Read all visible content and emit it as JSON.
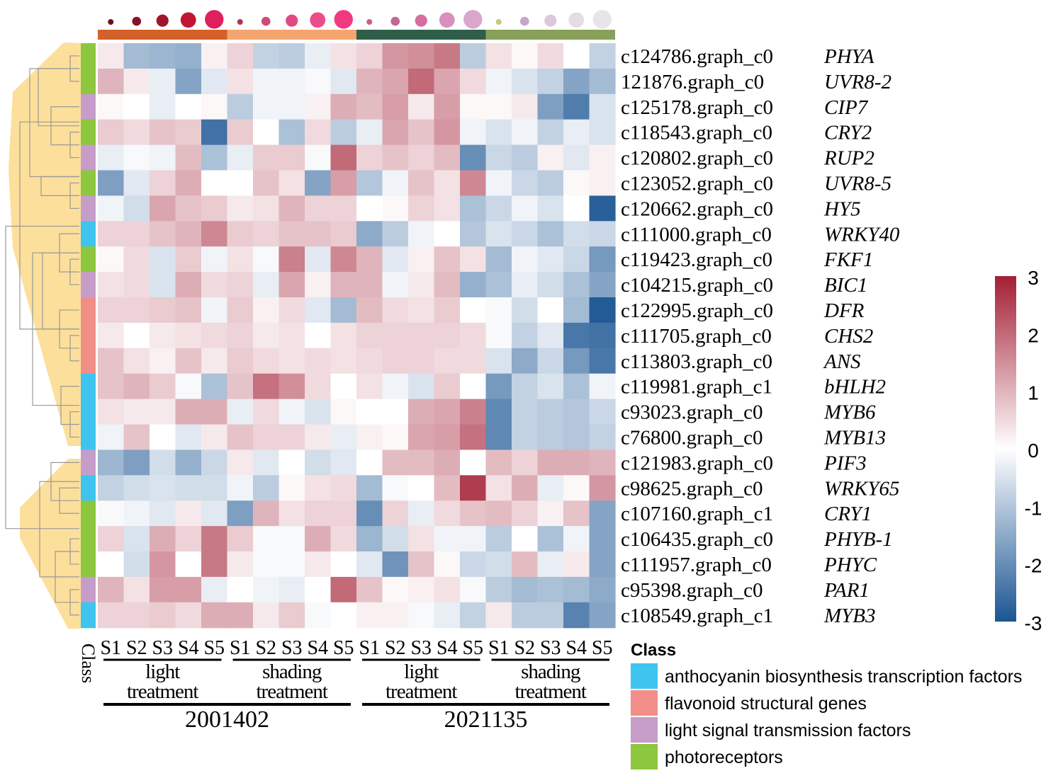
{
  "chart_data": {
    "type": "heatmap",
    "title": "",
    "columns": [
      "S1",
      "S2",
      "S3",
      "S4",
      "S5",
      "S1",
      "S2",
      "S3",
      "S4",
      "S5",
      "S1",
      "S2",
      "S3",
      "S4",
      "S5",
      "S1",
      "S2",
      "S3",
      "S4",
      "S5"
    ],
    "column_groups": [
      {
        "label": "light treatment",
        "cultivar": "2001402",
        "color": "#d4612a"
      },
      {
        "label": "shading treatment",
        "cultivar": "2001402",
        "color": "#f4a46e"
      },
      {
        "label": "light treatment",
        "cultivar": "2021135",
        "color": "#2f5e49"
      },
      {
        "label": "shading treatment",
        "cultivar": "2021135",
        "color": "#88a05a"
      }
    ],
    "cultivars": [
      "2001402",
      "2021135"
    ],
    "rows": [
      {
        "id": "c124786.graph_c0",
        "gene": "PHYA",
        "class": "photoreceptors"
      },
      {
        "id": "121876.graph_c0",
        "gene": "UVR8-2",
        "class": "photoreceptors"
      },
      {
        "id": "c125178.graph_c0",
        "gene": "CIP7",
        "class": "light signal transmission  factors"
      },
      {
        "id": "c118543.graph_c0",
        "gene": "CRY2",
        "class": "photoreceptors"
      },
      {
        "id": "c120802.graph_c0",
        "gene": "RUP2",
        "class": "light signal transmission  factors"
      },
      {
        "id": "c123052.graph_c0",
        "gene": "UVR8-5",
        "class": "photoreceptors"
      },
      {
        "id": "c120662.graph_c0",
        "gene": "HY5",
        "class": "light signal transmission  factors"
      },
      {
        "id": "c111000.graph_c0",
        "gene": "WRKY40",
        "class": "anthocyanin biosynthesis transcription factors"
      },
      {
        "id": "c119423.graph_c0",
        "gene": "FKF1",
        "class": "photoreceptors"
      },
      {
        "id": "c104215.graph_c0",
        "gene": "BIC1",
        "class": "light signal transmission  factors"
      },
      {
        "id": "c122995.graph_c0",
        "gene": "DFR",
        "class": "flavonoid structural genes"
      },
      {
        "id": "c111705.graph_c0",
        "gene": "CHS2",
        "class": "flavonoid structural genes"
      },
      {
        "id": "c113803.graph_c0",
        "gene": "ANS",
        "class": "flavonoid structural genes"
      },
      {
        "id": "c119981.graph_c1",
        "gene": "bHLH2",
        "class": "anthocyanin biosynthesis transcription factors"
      },
      {
        "id": "c93023.graph_c0",
        "gene": "MYB6",
        "class": "anthocyanin biosynthesis transcription factors"
      },
      {
        "id": "c76800.graph_c0",
        "gene": "MYB13",
        "class": "anthocyanin biosynthesis transcription factors"
      },
      {
        "id": "c121983.graph_c0",
        "gene": "PIF3",
        "class": "light signal transmission  factors"
      },
      {
        "id": "c98625.graph_c0",
        "gene": "WRKY65",
        "class": "anthocyanin biosynthesis transcription factors"
      },
      {
        "id": "c107160.graph_c1",
        "gene": "CRY1",
        "class": "photoreceptors"
      },
      {
        "id": "c106435.graph_c0",
        "gene": "PHYB-1",
        "class": "photoreceptors"
      },
      {
        "id": "c111957.graph_c0",
        "gene": "PHYC",
        "class": "photoreceptors"
      },
      {
        "id": "c95398.graph_c0",
        "gene": "PAR1",
        "class": "light signal transmission  factors"
      },
      {
        "id": "c108549.graph_c1",
        "gene": "MYB3",
        "class": "anthocyanin biosynthesis transcription factors"
      }
    ],
    "values": [
      [
        0.3,
        -1.2,
        -1.3,
        -1.4,
        0.2,
        0.6,
        -0.8,
        -0.9,
        -0.3,
        0.4,
        0.6,
        1.4,
        1.5,
        1.8,
        -0.9,
        0.4,
        0.1,
        0.5,
        0.0,
        -0.8
      ],
      [
        1.0,
        0.3,
        -0.3,
        -1.6,
        -0.4,
        0.4,
        -0.2,
        -0.2,
        -0.1,
        -0.4,
        1.0,
        1.2,
        2.0,
        1.2,
        0.5,
        -0.2,
        -0.5,
        -0.8,
        -1.6,
        -1.2
      ],
      [
        0.1,
        0.0,
        -0.3,
        0.0,
        0.1,
        -0.9,
        -0.2,
        -0.2,
        0.2,
        1.1,
        0.9,
        1.3,
        0.3,
        1.3,
        0.1,
        0.1,
        0.3,
        -1.7,
        -2.3,
        -0.5
      ],
      [
        0.7,
        0.5,
        0.8,
        0.7,
        -2.5,
        0.7,
        0.0,
        -1.1,
        0.5,
        -0.9,
        -0.3,
        1.2,
        0.8,
        1.4,
        -0.2,
        -0.5,
        -0.2,
        -0.8,
        -0.3,
        -0.5
      ],
      [
        -0.3,
        -0.1,
        -0.2,
        0.9,
        -1.1,
        -0.3,
        0.7,
        0.7,
        -0.1,
        2.0,
        0.6,
        0.8,
        0.6,
        0.9,
        -2.0,
        -0.7,
        -0.9,
        0.2,
        -0.4,
        0.2
      ],
      [
        -1.7,
        -0.4,
        0.6,
        1.1,
        0.0,
        0.0,
        0.8,
        0.4,
        -1.6,
        1.3,
        -1.0,
        -0.2,
        0.8,
        0.4,
        1.6,
        -0.2,
        -0.7,
        -0.9,
        0.1,
        0.2
      ],
      [
        -0.2,
        -0.6,
        1.2,
        0.8,
        0.7,
        0.3,
        0.4,
        1.0,
        0.6,
        0.6,
        0.0,
        0.1,
        0.6,
        0.4,
        -1.1,
        -0.7,
        -0.2,
        -0.5,
        0.0,
        -2.8
      ],
      [
        0.6,
        0.6,
        0.8,
        1.0,
        1.6,
        0.7,
        0.6,
        0.8,
        0.8,
        0.7,
        -1.5,
        -0.9,
        -0.2,
        0.0,
        -1.0,
        -0.5,
        -0.7,
        -1.1,
        -0.6,
        -0.7
      ],
      [
        0.1,
        0.5,
        -0.5,
        0.7,
        -0.2,
        0.4,
        -0.1,
        1.7,
        -0.4,
        1.6,
        1.0,
        -0.4,
        0.2,
        0.8,
        0.4,
        -1.2,
        -0.2,
        -0.4,
        -0.7,
        -1.8
      ],
      [
        0.4,
        0.5,
        -0.5,
        1.1,
        0.5,
        0.6,
        -0.3,
        1.2,
        0.2,
        1.0,
        1.0,
        -0.2,
        0.3,
        0.9,
        -1.4,
        -1.1,
        -0.3,
        -0.6,
        -1.1,
        -1.6
      ],
      [
        0.6,
        0.6,
        0.7,
        0.8,
        -0.2,
        0.7,
        0.2,
        0.5,
        -0.4,
        -1.2,
        0.9,
        0.5,
        0.4,
        0.7,
        0.0,
        -0.1,
        -0.6,
        0.0,
        -1.2,
        -2.9
      ],
      [
        0.3,
        0.0,
        0.3,
        0.4,
        0.5,
        0.6,
        0.3,
        0.4,
        0.0,
        0.4,
        0.6,
        0.6,
        0.6,
        0.6,
        0.5,
        -0.1,
        -0.8,
        -0.4,
        -2.4,
        -2.5
      ],
      [
        0.8,
        0.4,
        0.2,
        0.8,
        0.3,
        0.7,
        0.5,
        0.4,
        0.5,
        0.4,
        0.5,
        0.6,
        0.6,
        0.5,
        0.5,
        -0.5,
        -1.5,
        -0.7,
        -1.8,
        -2.4
      ],
      [
        0.8,
        1.0,
        0.7,
        -0.1,
        -1.1,
        0.8,
        1.9,
        1.5,
        0.5,
        0.0,
        0.4,
        -0.2,
        -0.5,
        0.7,
        0.0,
        -1.8,
        -0.8,
        -0.5,
        -1.1,
        -0.2
      ],
      [
        0.4,
        0.3,
        0.3,
        1.1,
        1.1,
        -0.3,
        0.5,
        -0.2,
        -0.5,
        0.1,
        0.0,
        0.0,
        1.1,
        1.2,
        1.7,
        -2.1,
        -0.8,
        -0.9,
        -1.0,
        -0.7
      ],
      [
        -0.2,
        0.8,
        0.0,
        -0.4,
        0.3,
        0.8,
        0.6,
        0.6,
        0.3,
        -0.3,
        0.2,
        0.1,
        1.2,
        1.3,
        1.9,
        -2.1,
        -0.8,
        -0.9,
        -1.0,
        -0.8
      ],
      [
        -1.3,
        -1.7,
        -0.6,
        -1.4,
        -0.7,
        0.3,
        -0.4,
        0.0,
        -0.6,
        -0.4,
        0.0,
        0.9,
        0.9,
        1.1,
        0.0,
        0.9,
        0.6,
        1.1,
        1.1,
        1.0
      ],
      [
        -0.8,
        -0.6,
        -0.5,
        -0.6,
        -0.6,
        -0.2,
        -0.9,
        0.1,
        0.4,
        0.5,
        -1.2,
        -0.1,
        0.0,
        0.9,
        2.6,
        0.4,
        1.1,
        -0.3,
        0.1,
        1.4
      ],
      [
        -0.1,
        -0.2,
        -0.4,
        0.3,
        -0.4,
        -1.7,
        1.0,
        0.4,
        0.6,
        0.6,
        -2.0,
        0.6,
        -0.3,
        0.5,
        0.8,
        0.9,
        0.6,
        0.2,
        0.8,
        -1.6
      ],
      [
        0.6,
        -0.5,
        1.1,
        0.6,
        1.8,
        0.7,
        -0.1,
        -0.1,
        1.1,
        0.5,
        -1.3,
        -0.6,
        0.4,
        -0.2,
        -0.2,
        -0.9,
        0.0,
        -1.1,
        -0.2,
        -1.6
      ],
      [
        0.0,
        -0.6,
        1.4,
        0.0,
        1.8,
        0.3,
        -0.1,
        -0.1,
        0.3,
        0.0,
        -0.4,
        -1.9,
        0.8,
        0.1,
        -0.7,
        -0.6,
        0.9,
        -0.3,
        0.3,
        -1.6
      ],
      [
        1.0,
        0.4,
        1.3,
        1.3,
        -0.3,
        0.0,
        -0.2,
        -0.3,
        0.0,
        2.0,
        0.8,
        0.1,
        0.2,
        0.4,
        -0.1,
        -0.9,
        -1.2,
        -1.1,
        -1.2,
        -1.5
      ],
      [
        0.6,
        0.6,
        0.7,
        0.5,
        1.1,
        1.1,
        0.3,
        0.7,
        -0.1,
        0.0,
        0.2,
        0.2,
        -0.1,
        -0.3,
        -0.8,
        0.3,
        -0.9,
        -0.9,
        -2.2,
        -1.6
      ]
    ],
    "color_scale": {
      "min": -3,
      "max": 3,
      "low": "#1b5593",
      "mid": "#ffffff",
      "high": "#a31f35"
    },
    "colorbar_ticks": [
      "3",
      "2",
      "1",
      "0",
      "-1",
      "-2",
      "-3"
    ],
    "class_colors": {
      "anthocyanin biosynthesis transcription factors": "#3ec4ef",
      "flavonoid structural genes": "#f28e88",
      "light signal transmission  factors": "#c69dc9",
      "photoreceptors": "#8dc63f"
    },
    "class_axis_label": "Class",
    "legend": {
      "title": "Class",
      "items": [
        {
          "label": "anthocyanin biosynthesis transcription factors",
          "color": "#3ec4ef"
        },
        {
          "label": "flavonoid structural genes",
          "color": "#f28e88"
        },
        {
          "label": "light signal transmission  factors",
          "color": "#c69dc9"
        },
        {
          "label": "photoreceptors",
          "color": "#8dc63f"
        }
      ]
    },
    "flower_colors": [
      "#6b0f1f",
      "#8a1028",
      "#a0142c",
      "#c01535",
      "#e0205e",
      "#b0335a",
      "#d04a78",
      "#e04a82",
      "#ea4c8c",
      "#f03a80",
      "#c95d8e",
      "#c06890",
      "#d66ea0",
      "#d990c0",
      "#dba6cc",
      "#c8c880",
      "#c8a6c8",
      "#dcc8dc",
      "#e4dde4",
      "#e8e4e8"
    ]
  }
}
